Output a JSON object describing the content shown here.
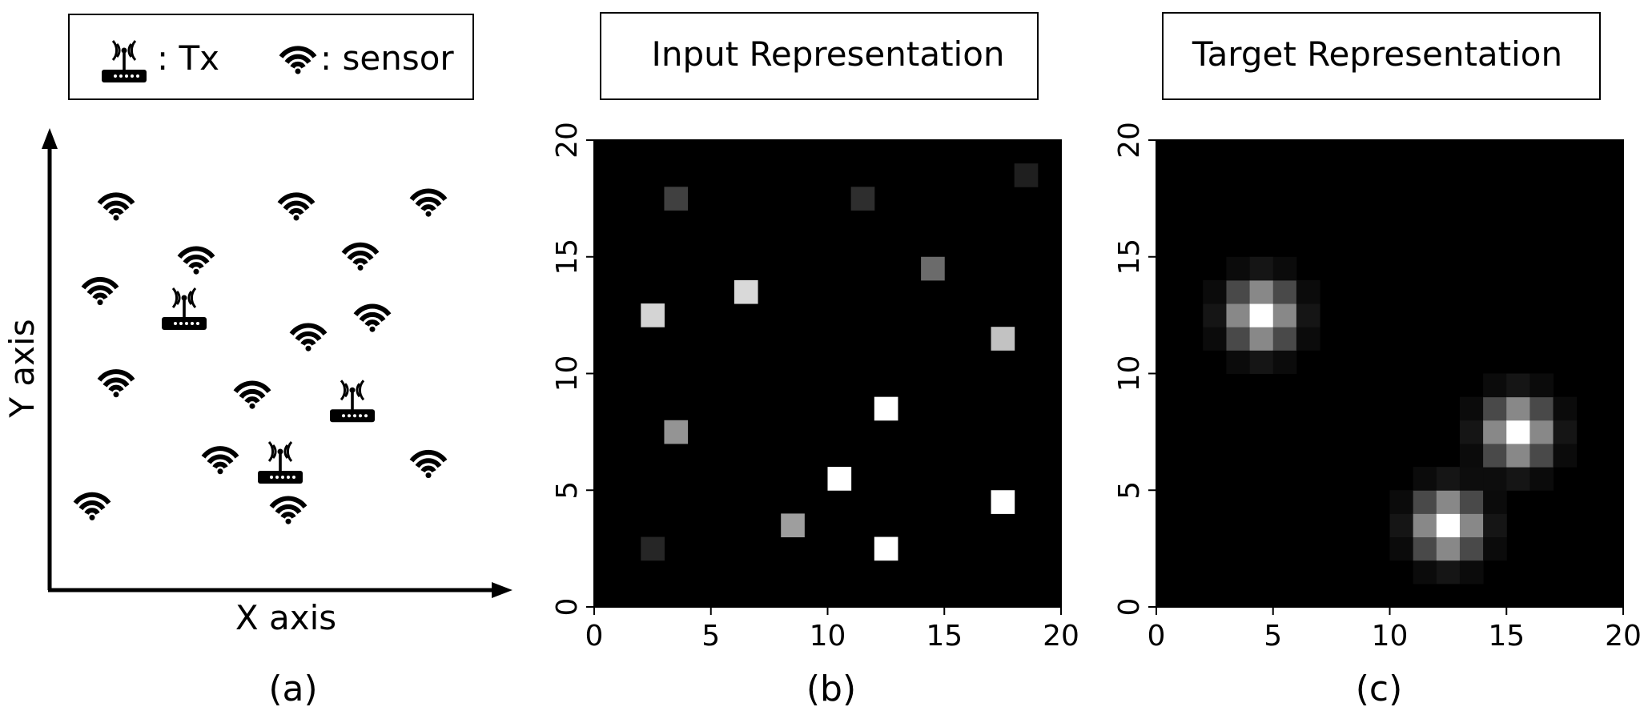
{
  "legend": {
    "tx_label": ": Tx",
    "sensor_label": ": sensor"
  },
  "panel_a": {
    "xlabel": "X axis",
    "ylabel": "Y axis",
    "caption": "(a)",
    "sensors": [
      [
        1,
        9
      ],
      [
        5.5,
        9
      ],
      [
        8.8,
        9.1
      ],
      [
        3,
        7.6
      ],
      [
        7.1,
        7.7
      ],
      [
        0.6,
        6.8
      ],
      [
        7.4,
        6.1
      ],
      [
        5.8,
        5.6
      ],
      [
        1,
        4.4
      ],
      [
        4.4,
        4.1
      ],
      [
        3.6,
        2.4
      ],
      [
        8.8,
        2.3
      ],
      [
        0.4,
        1.2
      ],
      [
        5.3,
        1.1
      ]
    ],
    "transmitters": [
      [
        2.7,
        6
      ],
      [
        6.9,
        3.6
      ],
      [
        5.1,
        2
      ]
    ]
  },
  "panel_b": {
    "title": "Input Representation",
    "caption": "(b)",
    "chart_data": {
      "type": "heatmap",
      "xlim": [
        0,
        20
      ],
      "ylim": [
        0,
        20
      ],
      "xticks": [
        "0",
        "5",
        "10",
        "15",
        "20"
      ],
      "yticks": [
        "0",
        "5",
        "10",
        "15",
        "20"
      ],
      "cells": [
        [
          3,
          17,
          0.25
        ],
        [
          11,
          17,
          0.18
        ],
        [
          18,
          18,
          0.12
        ],
        [
          14,
          14,
          0.42
        ],
        [
          2,
          12,
          0.83
        ],
        [
          6,
          13,
          0.85
        ],
        [
          17,
          11,
          0.76
        ],
        [
          12,
          8,
          1.0
        ],
        [
          3,
          7,
          0.58
        ],
        [
          10,
          5,
          1.0
        ],
        [
          17,
          4,
          1.0
        ],
        [
          8,
          3,
          0.62
        ],
        [
          12,
          2,
          1.0
        ],
        [
          2,
          2,
          0.15
        ]
      ]
    }
  },
  "panel_c": {
    "title": "Target Representation",
    "caption": "(c)",
    "chart_data": {
      "type": "heatmap",
      "xlim": [
        0,
        20
      ],
      "ylim": [
        0,
        20
      ],
      "xticks": [
        "0",
        "5",
        "10",
        "15",
        "20"
      ],
      "yticks": [
        "0",
        "5",
        "10",
        "15",
        "20"
      ],
      "peaks": [
        [
          4,
          12
        ],
        [
          15,
          7
        ],
        [
          12,
          3
        ]
      ]
    }
  }
}
